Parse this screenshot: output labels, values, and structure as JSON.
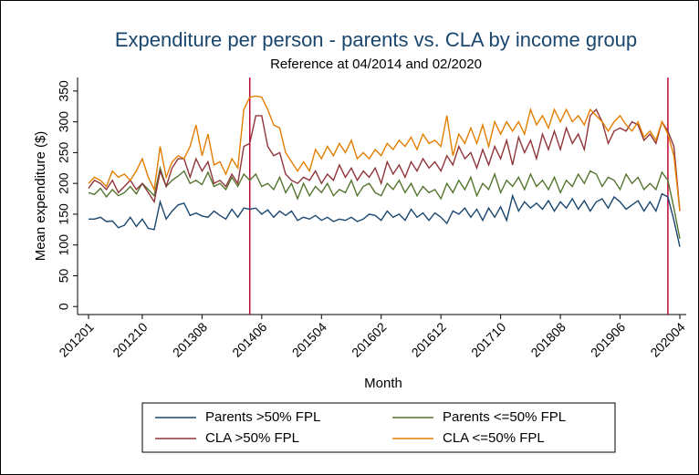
{
  "chart_data": {
    "type": "line",
    "title": "Expenditure per person - parents vs. CLA by income group",
    "subtitle": "Reference at 04/2014 and 02/2020",
    "x_label": "Month",
    "y_label": "Mean expenditure ($)",
    "x": [
      "201201",
      "201202",
      "201203",
      "201204",
      "201205",
      "201206",
      "201207",
      "201208",
      "201209",
      "201210",
      "201211",
      "201212",
      "201301",
      "201302",
      "201303",
      "201304",
      "201305",
      "201306",
      "201307",
      "201308",
      "201309",
      "201310",
      "201311",
      "201312",
      "201401",
      "201402",
      "201403",
      "201404",
      "201405",
      "201406",
      "201407",
      "201408",
      "201409",
      "201410",
      "201411",
      "201412",
      "201501",
      "201502",
      "201503",
      "201504",
      "201505",
      "201506",
      "201507",
      "201508",
      "201509",
      "201510",
      "201511",
      "201512",
      "201601",
      "201602",
      "201603",
      "201604",
      "201605",
      "201606",
      "201607",
      "201608",
      "201609",
      "201610",
      "201611",
      "201612",
      "201701",
      "201702",
      "201703",
      "201704",
      "201705",
      "201706",
      "201707",
      "201708",
      "201709",
      "201710",
      "201711",
      "201712",
      "201801",
      "201802",
      "201803",
      "201804",
      "201805",
      "201806",
      "201807",
      "201808",
      "201809",
      "201810",
      "201811",
      "201812",
      "201901",
      "201902",
      "201903",
      "201904",
      "201905",
      "201906",
      "201907",
      "201908",
      "201909",
      "201910",
      "201911",
      "201912",
      "202001",
      "202002",
      "202003",
      "202004"
    ],
    "xticks": [
      "201201",
      "201210",
      "201308",
      "201406",
      "201504",
      "201602",
      "201612",
      "201710",
      "201808",
      "201906",
      "202004"
    ],
    "reference_lines": [
      "201404",
      "202002"
    ],
    "reference_color": "#c10534",
    "ylim": [
      -13,
      372
    ],
    "yticks": [
      0,
      50,
      100,
      150,
      200,
      250,
      300,
      350
    ],
    "grid": false,
    "legend_position": "bottom",
    "series": [
      {
        "name": "Parents >50% FPL",
        "color": "#1a476f",
        "values": [
          142,
          142,
          145,
          138,
          139,
          128,
          132,
          145,
          130,
          142,
          127,
          125,
          170,
          142,
          155,
          165,
          168,
          148,
          152,
          147,
          145,
          155,
          148,
          142,
          158,
          145,
          160,
          158,
          160,
          150,
          157,
          145,
          155,
          148,
          155,
          140,
          145,
          142,
          148,
          140,
          145,
          138,
          142,
          140,
          145,
          138,
          142,
          150,
          148,
          140,
          155,
          145,
          150,
          140,
          158,
          145,
          152,
          140,
          152,
          145,
          135,
          155,
          150,
          160,
          145,
          158,
          140,
          160,
          145,
          162,
          140,
          180,
          155,
          170,
          160,
          168,
          158,
          172,
          155,
          170,
          160,
          175,
          158,
          172,
          155,
          170,
          175,
          160,
          178,
          170,
          158,
          165,
          172,
          155,
          170,
          155,
          183,
          178,
          140,
          97
        ]
      },
      {
        "name": "Parents <=50% FPL",
        "color": "#55752f",
        "values": [
          185,
          182,
          192,
          178,
          190,
          180,
          185,
          195,
          183,
          200,
          190,
          180,
          225,
          195,
          205,
          212,
          220,
          200,
          205,
          198,
          218,
          195,
          200,
          190,
          210,
          195,
          215,
          205,
          215,
          195,
          200,
          190,
          210,
          185,
          200,
          175,
          200,
          180,
          195,
          185,
          200,
          180,
          190,
          185,
          205,
          180,
          195,
          200,
          185,
          180,
          200,
          190,
          205,
          185,
          200,
          180,
          195,
          185,
          190,
          175,
          200,
          185,
          205,
          190,
          210,
          180,
          200,
          190,
          215,
          185,
          205,
          195,
          210,
          190,
          215,
          195,
          205,
          190,
          210,
          185,
          205,
          195,
          215,
          200,
          220,
          215,
          195,
          210,
          205,
          190,
          215,
          200,
          210,
          190,
          200,
          190,
          218,
          205,
          160,
          110
        ]
      },
      {
        "name": "CLA >50% FPL",
        "color": "#90353b",
        "values": [
          192,
          205,
          200,
          190,
          205,
          185,
          195,
          205,
          190,
          200,
          185,
          170,
          220,
          195,
          225,
          240,
          240,
          210,
          240,
          220,
          235,
          200,
          205,
          195,
          215,
          200,
          260,
          265,
          310,
          310,
          260,
          245,
          250,
          215,
          205,
          200,
          210,
          205,
          220,
          200,
          215,
          205,
          230,
          210,
          225,
          205,
          220,
          210,
          225,
          200,
          235,
          215,
          230,
          210,
          235,
          220,
          240,
          225,
          235,
          220,
          245,
          230,
          260,
          240,
          250,
          225,
          255,
          230,
          260,
          240,
          270,
          230,
          275,
          250,
          270,
          240,
          280,
          255,
          285,
          255,
          290,
          265,
          280,
          255,
          310,
          320,
          300,
          265,
          285,
          290,
          285,
          300,
          295,
          270,
          280,
          265,
          300,
          285,
          260,
          155
        ]
      },
      {
        "name": "CLA <=50% FPL",
        "color": "#e37e00",
        "values": [
          200,
          210,
          205,
          195,
          220,
          210,
          215,
          205,
          220,
          240,
          210,
          190,
          260,
          210,
          235,
          245,
          240,
          260,
          295,
          245,
          280,
          230,
          235,
          215,
          240,
          225,
          320,
          340,
          342,
          340,
          320,
          295,
          290,
          250,
          235,
          220,
          235,
          220,
          255,
          240,
          260,
          245,
          265,
          250,
          270,
          240,
          250,
          240,
          255,
          245,
          265,
          255,
          270,
          260,
          275,
          255,
          280,
          265,
          270,
          260,
          310,
          245,
          280,
          265,
          290,
          265,
          295,
          260,
          300,
          280,
          300,
          285,
          300,
          280,
          320,
          295,
          310,
          290,
          320,
          300,
          320,
          300,
          310,
          295,
          320,
          310,
          300,
          285,
          300,
          310,
          295,
          285,
          300,
          275,
          285,
          270,
          300,
          280,
          245,
          155
        ]
      }
    ]
  }
}
